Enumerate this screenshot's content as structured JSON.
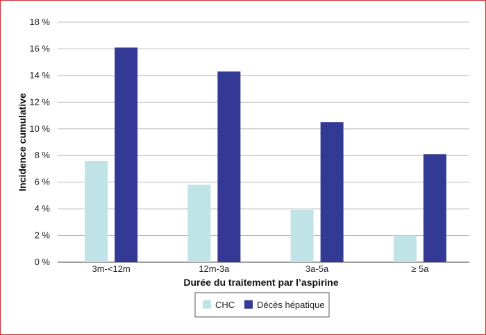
{
  "chart_data": {
    "type": "bar",
    "categories": [
      "3m-<12m",
      "12m-3a",
      "3a-5a",
      "≥ 5a"
    ],
    "series": [
      {
        "name": "CHC",
        "values": [
          7.6,
          5.8,
          3.9,
          2.0
        ],
        "color": "#bfe3e6"
      },
      {
        "name": "Décès hépatique",
        "values": [
          16.1,
          14.3,
          10.5,
          8.1
        ],
        "color": "#343996"
      }
    ],
    "xlabel": "Durée du traitement par l’aspirine",
    "ylabel": "Incidence cumulative",
    "ylim": [
      0,
      18
    ],
    "yticks": [
      0,
      2,
      4,
      6,
      8,
      10,
      12,
      14,
      16,
      18
    ],
    "ytick_suffix": " %",
    "grid": true,
    "legend_position": "bottom-center"
  }
}
